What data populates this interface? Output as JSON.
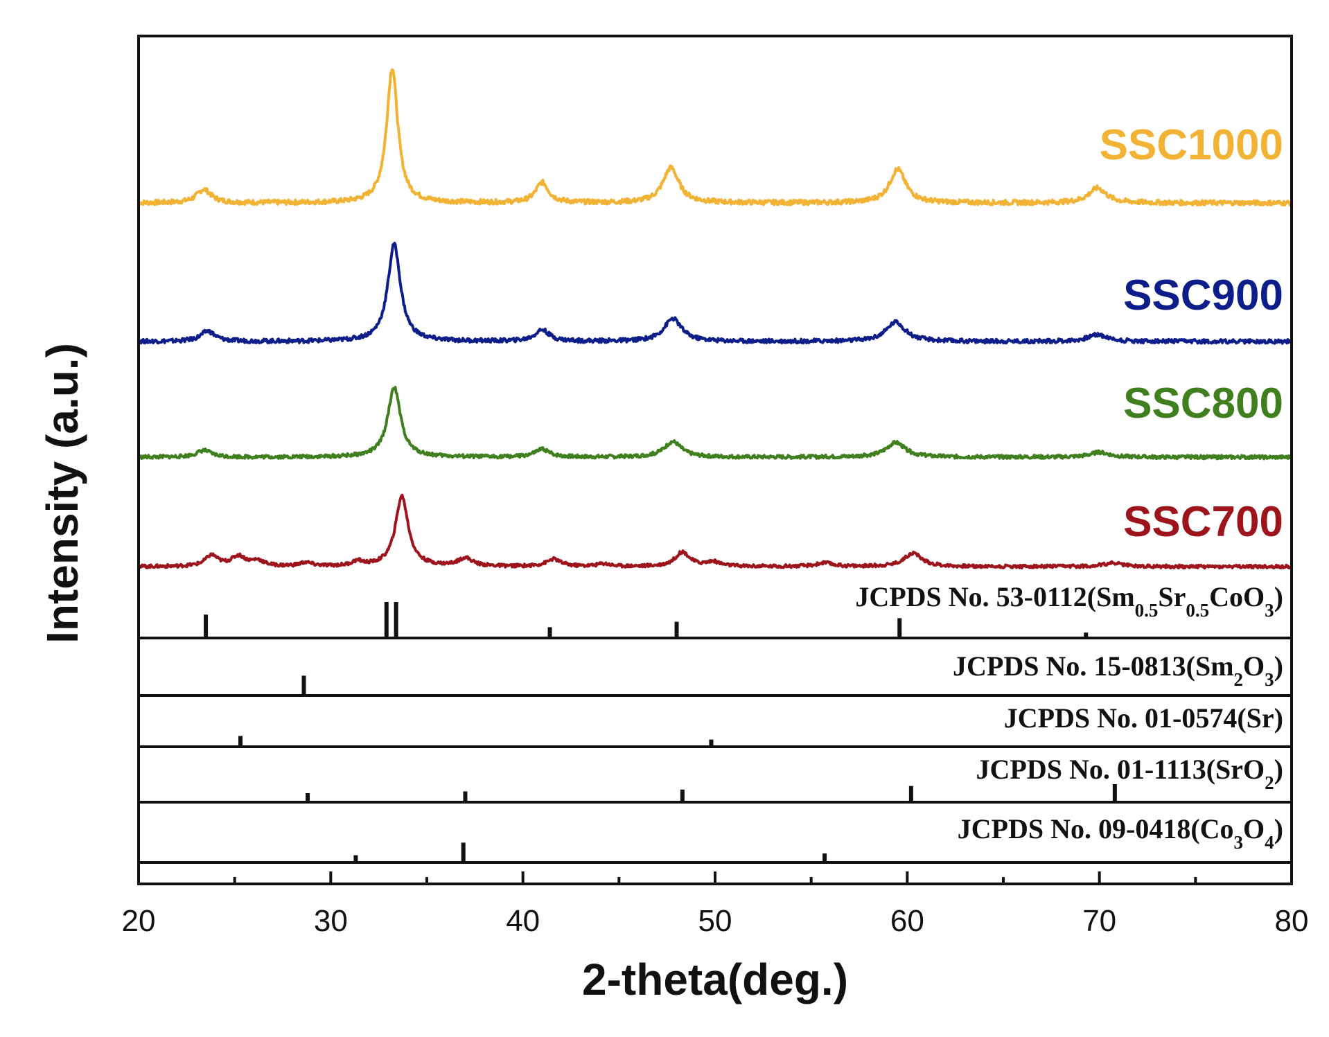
{
  "chart_data": {
    "type": "line",
    "title": "",
    "xlabel": "2-theta(deg.)",
    "ylabel": "Intensity (a.u.)",
    "xlim": [
      20,
      80
    ],
    "x_ticks": [
      20,
      30,
      40,
      50,
      60,
      70,
      80
    ],
    "series": [
      {
        "name": "SSC1000",
        "color": "#F2B233",
        "peaks": [
          {
            "x": 23.4,
            "h": 0.1,
            "w": 0.45
          },
          {
            "x": 33.2,
            "h": 1.0,
            "w": 0.35
          },
          {
            "x": 41.0,
            "h": 0.15,
            "w": 0.4
          },
          {
            "x": 47.7,
            "h": 0.26,
            "w": 0.5
          },
          {
            "x": 59.5,
            "h": 0.25,
            "w": 0.5
          },
          {
            "x": 69.9,
            "h": 0.11,
            "w": 0.55
          }
        ]
      },
      {
        "name": "SSC900",
        "color": "#0D1E8A",
        "peaks": [
          {
            "x": 23.6,
            "h": 0.09,
            "w": 0.45
          },
          {
            "x": 33.3,
            "h": 0.85,
            "w": 0.4
          },
          {
            "x": 41.0,
            "h": 0.1,
            "w": 0.45
          },
          {
            "x": 47.8,
            "h": 0.2,
            "w": 0.55
          },
          {
            "x": 59.4,
            "h": 0.17,
            "w": 0.6
          },
          {
            "x": 69.9,
            "h": 0.06,
            "w": 0.6
          }
        ]
      },
      {
        "name": "SSC800",
        "color": "#3F7F1E",
        "peaks": [
          {
            "x": 23.4,
            "h": 0.07,
            "w": 0.45
          },
          {
            "x": 33.3,
            "h": 0.72,
            "w": 0.4
          },
          {
            "x": 41.0,
            "h": 0.08,
            "w": 0.45
          },
          {
            "x": 47.8,
            "h": 0.16,
            "w": 0.55
          },
          {
            "x": 59.4,
            "h": 0.15,
            "w": 0.6
          },
          {
            "x": 70.0,
            "h": 0.05,
            "w": 0.6
          }
        ]
      },
      {
        "name": "SSC700",
        "color": "#9E141C",
        "peaks": [
          {
            "x": 23.8,
            "h": 0.12,
            "w": 0.4
          },
          {
            "x": 25.2,
            "h": 0.11,
            "w": 0.45
          },
          {
            "x": 26.2,
            "h": 0.06,
            "w": 0.4
          },
          {
            "x": 28.7,
            "h": 0.04,
            "w": 0.4
          },
          {
            "x": 31.4,
            "h": 0.05,
            "w": 0.35
          },
          {
            "x": 33.7,
            "h": 0.78,
            "w": 0.4
          },
          {
            "x": 37.0,
            "h": 0.09,
            "w": 0.45
          },
          {
            "x": 41.6,
            "h": 0.08,
            "w": 0.45
          },
          {
            "x": 44.2,
            "h": 0.03,
            "w": 0.4
          },
          {
            "x": 48.3,
            "h": 0.16,
            "w": 0.45
          },
          {
            "x": 49.9,
            "h": 0.05,
            "w": 0.45
          },
          {
            "x": 55.7,
            "h": 0.04,
            "w": 0.5
          },
          {
            "x": 60.3,
            "h": 0.15,
            "w": 0.55
          },
          {
            "x": 70.7,
            "h": 0.04,
            "w": 0.6
          }
        ]
      }
    ],
    "references": [
      {
        "label": "JCPDS No. 53-0112(Sm0.5Sr0.5CoO3)",
        "lines": [
          {
            "x": 23.5,
            "h": 0.65
          },
          {
            "x": 32.9,
            "h": 1.0
          },
          {
            "x": 33.4,
            "h": 1.0
          },
          {
            "x": 41.4,
            "h": 0.3
          },
          {
            "x": 48.0,
            "h": 0.45
          },
          {
            "x": 59.6,
            "h": 0.55
          },
          {
            "x": 69.3,
            "h": 0.15
          }
        ]
      },
      {
        "label": "JCPDS No. 15-0813(Sm2O3)",
        "lines": [
          {
            "x": 28.6,
            "h": 0.55
          }
        ]
      },
      {
        "label": "JCPDS No. 01-0574(Sr)",
        "lines": [
          {
            "x": 25.3,
            "h": 0.3
          },
          {
            "x": 49.8,
            "h": 0.2
          }
        ]
      },
      {
        "label": "JCPDS No. 01-1113(SrO2)",
        "lines": [
          {
            "x": 28.8,
            "h": 0.25
          },
          {
            "x": 37.0,
            "h": 0.3
          },
          {
            "x": 48.3,
            "h": 0.35
          },
          {
            "x": 60.2,
            "h": 0.45
          },
          {
            "x": 70.8,
            "h": 0.5
          }
        ]
      },
      {
        "label": "JCPDS No. 09-0418(Co3O4)",
        "lines": [
          {
            "x": 31.3,
            "h": 0.2
          },
          {
            "x": 36.9,
            "h": 0.55
          },
          {
            "x": 55.7,
            "h": 0.25
          }
        ]
      }
    ]
  }
}
